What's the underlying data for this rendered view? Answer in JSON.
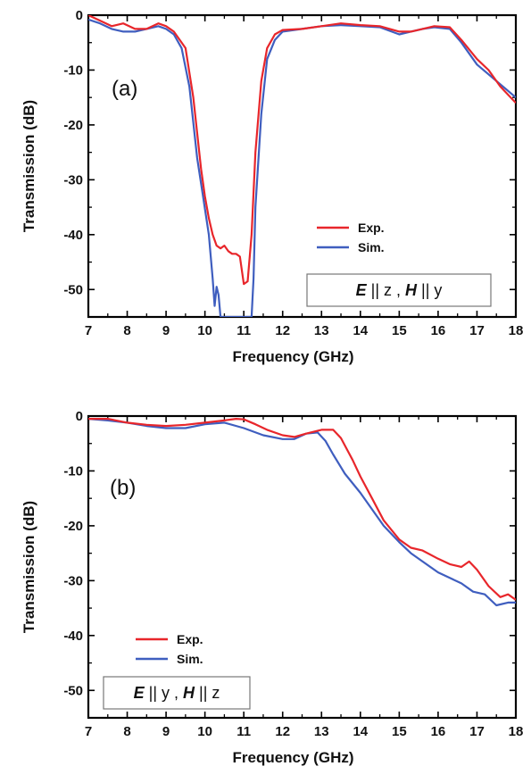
{
  "chart_data": [
    {
      "type": "line",
      "panel_label": "(a)",
      "xlabel": "Frequency (GHz)",
      "ylabel": "Transmission (dB)",
      "xlim": [
        7,
        18
      ],
      "ylim": [
        -55,
        0
      ],
      "xticks": [
        7,
        8,
        9,
        10,
        11,
        12,
        13,
        14,
        15,
        16,
        17,
        18
      ],
      "yticks": [
        0,
        -10,
        -20,
        -30,
        -40,
        -50
      ],
      "legend_position": "bottom-right",
      "polarization": {
        "E": "E",
        "e_dir": "z",
        "H": "H",
        "h_dir": "y"
      },
      "series": [
        {
          "name": "Exp.",
          "color": "#e8262b",
          "x": [
            7.0,
            7.3,
            7.6,
            7.9,
            8.2,
            8.5,
            8.8,
            9.0,
            9.2,
            9.5,
            9.7,
            9.9,
            10.0,
            10.1,
            10.2,
            10.3,
            10.4,
            10.5,
            10.6,
            10.7,
            10.8,
            10.9,
            11.0,
            11.1,
            11.2,
            11.3,
            11.45,
            11.6,
            11.8,
            12.0,
            12.5,
            13.0,
            13.5,
            14.0,
            14.5,
            15.0,
            15.3,
            15.6,
            15.9,
            16.3,
            16.6,
            17.0,
            17.3,
            17.6,
            18.0
          ],
          "y": [
            0,
            -1,
            -2,
            -1.5,
            -2.5,
            -2.5,
            -1.5,
            -2,
            -3,
            -6,
            -15,
            -28,
            -33,
            -37,
            -40,
            -42,
            -42.5,
            -42,
            -43,
            -43.5,
            -43.5,
            -44,
            -49,
            -48.5,
            -40,
            -25,
            -12,
            -6,
            -3.5,
            -2.7,
            -2.5,
            -2,
            -1.5,
            -1.8,
            -2,
            -3,
            -3,
            -2.5,
            -2,
            -2.2,
            -4.5,
            -8,
            -10,
            -13,
            -16
          ]
        },
        {
          "name": "Sim.",
          "color": "#3f5ebf",
          "x": [
            7.0,
            7.3,
            7.6,
            7.9,
            8.2,
            8.5,
            8.8,
            9.0,
            9.2,
            9.4,
            9.6,
            9.8,
            9.95,
            10.1,
            10.2,
            10.25,
            10.3,
            10.35,
            10.4,
            10.45,
            11.2,
            11.25,
            11.3,
            11.45,
            11.6,
            11.8,
            12.0,
            12.5,
            13.0,
            13.5,
            14.0,
            14.5,
            15.0,
            15.3,
            15.6,
            15.9,
            16.3,
            16.6,
            17.0,
            17.5,
            18.0
          ],
          "y": [
            -0.8,
            -1.5,
            -2.5,
            -3,
            -3,
            -2.5,
            -2,
            -2.5,
            -3.5,
            -6,
            -13,
            -26,
            -33,
            -40,
            -48,
            -53,
            -49.5,
            -51,
            -55,
            -55,
            -55,
            -48,
            -35,
            -18,
            -8,
            -4.5,
            -3,
            -2.5,
            -2,
            -1.8,
            -2,
            -2.2,
            -3.5,
            -3,
            -2.5,
            -2.2,
            -2.5,
            -5,
            -9,
            -12,
            -15
          ]
        }
      ]
    },
    {
      "type": "line",
      "panel_label": "(b)",
      "xlabel": "Frequency (GHz)",
      "ylabel": "Transmission (dB)",
      "xlim": [
        7,
        18
      ],
      "ylim": [
        -55,
        0
      ],
      "xticks": [
        7,
        8,
        9,
        10,
        11,
        12,
        13,
        14,
        15,
        16,
        17,
        18
      ],
      "yticks": [
        0,
        -10,
        -20,
        -30,
        -40,
        -50
      ],
      "legend_position": "bottom-left",
      "polarization": {
        "E": "E",
        "e_dir": "y",
        "H": "H",
        "h_dir": "z"
      },
      "series": [
        {
          "name": "Exp.",
          "color": "#e8262b",
          "x": [
            7.0,
            7.5,
            8.0,
            8.5,
            9.0,
            9.5,
            10.0,
            10.5,
            10.8,
            11.0,
            11.3,
            11.6,
            12.0,
            12.3,
            12.6,
            13.0,
            13.3,
            13.5,
            13.8,
            14.0,
            14.3,
            14.6,
            15.0,
            15.3,
            15.6,
            16.0,
            16.3,
            16.6,
            16.8,
            17.0,
            17.3,
            17.6,
            17.8,
            18.0
          ],
          "y": [
            -0.5,
            -0.5,
            -1.2,
            -1.6,
            -1.8,
            -1.6,
            -1.2,
            -0.8,
            -0.5,
            -0.6,
            -1.5,
            -2.5,
            -3.5,
            -3.8,
            -3.2,
            -2.5,
            -2.5,
            -4,
            -8,
            -11,
            -15,
            -19,
            -22.5,
            -24,
            -24.5,
            -26,
            -27,
            -27.5,
            -26.5,
            -28,
            -31,
            -33,
            -32.5,
            -33.5
          ]
        },
        {
          "name": "Sim.",
          "color": "#3f5ebf",
          "x": [
            7.0,
            7.5,
            8.0,
            8.5,
            9.0,
            9.5,
            10.0,
            10.5,
            11.0,
            11.5,
            12.0,
            12.3,
            12.6,
            12.9,
            13.1,
            13.3,
            13.6,
            14.0,
            14.3,
            14.6,
            15.0,
            15.3,
            15.6,
            16.0,
            16.3,
            16.6,
            16.9,
            17.2,
            17.5,
            17.8,
            18.0
          ],
          "y": [
            -0.5,
            -0.8,
            -1.2,
            -1.8,
            -2.2,
            -2.2,
            -1.5,
            -1.2,
            -2.2,
            -3.5,
            -4.2,
            -4.2,
            -3.2,
            -3.0,
            -4.5,
            -7,
            -10.5,
            -14,
            -17,
            -20,
            -23,
            -25,
            -26.5,
            -28.5,
            -29.5,
            -30.5,
            -32,
            -32.5,
            -34.5,
            -34,
            -34
          ]
        }
      ]
    }
  ]
}
